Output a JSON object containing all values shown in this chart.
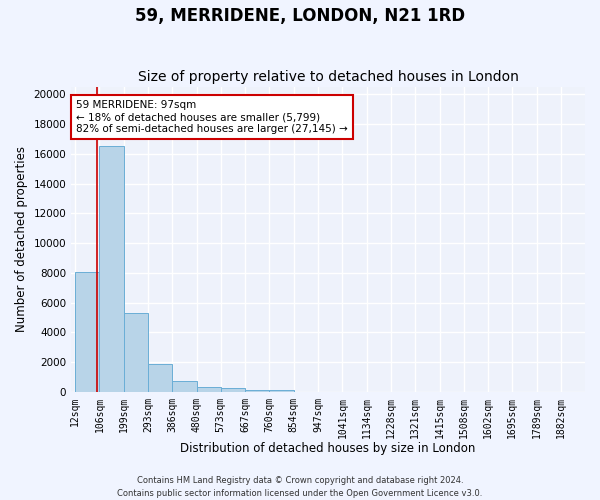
{
  "title": "59, MERRIDENE, LONDON, N21 1RD",
  "subtitle": "Size of property relative to detached houses in London",
  "xlabel": "Distribution of detached houses by size in London",
  "ylabel": "Number of detached properties",
  "footer_line1": "Contains HM Land Registry data © Crown copyright and database right 2024.",
  "footer_line2": "Contains public sector information licensed under the Open Government Licence v3.0.",
  "bar_edges": [
    12,
    106,
    199,
    293,
    386,
    480,
    573,
    667,
    760,
    854,
    947,
    1041,
    1134,
    1228,
    1321,
    1415,
    1508,
    1602,
    1695,
    1789,
    1882
  ],
  "bar_heights": [
    8050,
    16550,
    5300,
    1850,
    700,
    350,
    250,
    155,
    155,
    0,
    0,
    0,
    0,
    0,
    0,
    0,
    0,
    0,
    0,
    0
  ],
  "bar_color": "#b8d4e8",
  "bar_edge_color": "#6aaed6",
  "property_size": 97,
  "vline_color": "#cc0000",
  "annotation_text": "59 MERRIDENE: 97sqm\n← 18% of detached houses are smaller (5,799)\n82% of semi-detached houses are larger (27,145) →",
  "annotation_box_color": "#ffffff",
  "annotation_border_color": "#cc0000",
  "ylim": [
    0,
    20500
  ],
  "yticks": [
    0,
    2000,
    4000,
    6000,
    8000,
    10000,
    12000,
    14000,
    16000,
    18000,
    20000
  ],
  "bg_color": "#eef2fb",
  "grid_color": "#ffffff",
  "title_fontsize": 12,
  "subtitle_fontsize": 10,
  "tick_fontsize": 7,
  "axis_label_fontsize": 8.5,
  "footer_fontsize": 6
}
